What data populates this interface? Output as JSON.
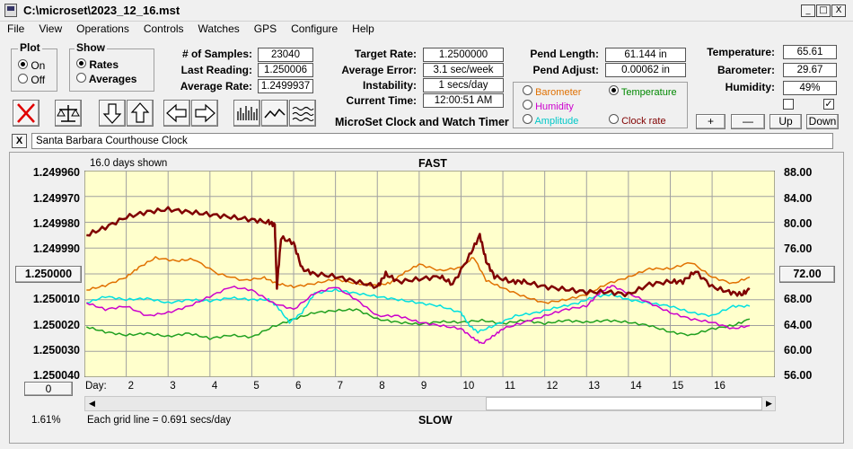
{
  "window": {
    "title": "C:\\microset\\2023_12_16.mst",
    "btn_min": "_",
    "btn_max": "□",
    "btn_close": "X"
  },
  "menu": [
    "File",
    "View",
    "Operations",
    "Controls",
    "Watches",
    "GPS",
    "Configure",
    "Help"
  ],
  "plot": {
    "title": "Plot",
    "on": "On",
    "off": "Off",
    "selected": "On"
  },
  "show": {
    "title": "Show",
    "rates": "Rates",
    "averages": "Averages",
    "selected": "Rates"
  },
  "stats": {
    "samples_label": "# of Samples:",
    "samples": "23040",
    "last_label": "Last Reading:",
    "last": "1.250006",
    "avg_rate_label": "Average Rate:",
    "avg_rate": "1.2499937",
    "target_label": "Target Rate:",
    "target": "1.2500000",
    "avg_err_label": "Average Error:",
    "avg_err": "3.1 sec/week",
    "instab_label": "Instability:",
    "instab": "1 secs/day",
    "time_label": "Current Time:",
    "time": "12:00:51 AM",
    "pend_len_label": "Pend Length:",
    "pend_len": "61.144 in",
    "pend_adj_label": "Pend Adjust:",
    "pend_adj": "0.00062 in",
    "temp_label": "Temperature:",
    "temp": "65.61",
    "baro_label": "Barometer:",
    "baro": "29.67",
    "hum_label": "Humidity:",
    "hum": "49%"
  },
  "subtitle": "MicroSet Clock and Watch Timer",
  "sensor_select": {
    "items": [
      {
        "label": "Barometer",
        "color": "#e07000"
      },
      {
        "label": "Temperature",
        "color": "#008800"
      },
      {
        "label": "Humidity",
        "color": "#cc00cc"
      },
      {
        "label": "Amplitude",
        "color": "#00c8c8"
      },
      {
        "label": "Clock rate",
        "color": "#800000"
      }
    ],
    "selected": "Temperature"
  },
  "scale_buttons": {
    "plus": "+",
    "minus": "—",
    "up": "Up",
    "down": "Down"
  },
  "humidity_check": true,
  "clock_name": "Santa Barbara Courthouse Clock",
  "close_x": "X",
  "chart": {
    "days_shown": "16.0 days shown",
    "fast": "FAST",
    "slow": "SLOW",
    "day_label": "Day:",
    "gridline_note": "Each grid line = 0.691 secs/day",
    "percent": "1.61%",
    "left_btn": "1.250000",
    "right_btn": "72.00",
    "zero_btn": "0",
    "bg": "#ffffcc"
  },
  "chart_data": {
    "type": "line",
    "title": "",
    "x_label": "Day",
    "x_ticks": [
      "2",
      "3",
      "4",
      "5",
      "6",
      "7",
      "8",
      "9",
      "10",
      "11",
      "12",
      "13",
      "14",
      "15",
      "16"
    ],
    "x_range": [
      1,
      17.5
    ],
    "y_left_ticks": [
      "1.249960",
      "1.249970",
      "1.249980",
      "1.249990",
      "1.250000",
      "1.250010",
      "1.250020",
      "1.250030",
      "1.250040"
    ],
    "y_left_range": [
      1.24996,
      1.25004
    ],
    "y_left_inverted": true,
    "y_right_ticks": [
      "88.00",
      "84.00",
      "80.00",
      "76.00",
      "72.00",
      "68.00",
      "64.00",
      "60.00",
      "56.00"
    ],
    "y_right_range": [
      56,
      88
    ],
    "grid": true,
    "series": [
      {
        "name": "Clock rate",
        "color": "#800000",
        "width": 2.5,
        "axis": "left",
        "x": [
          1.05,
          1.5,
          2.0,
          2.5,
          3.0,
          3.5,
          4.0,
          4.5,
          5.0,
          5.4,
          5.55,
          5.6,
          5.7,
          6.0,
          6.2,
          6.5,
          7.0,
          7.5,
          8.0,
          8.2,
          8.5,
          9.0,
          9.5,
          9.8,
          10.2,
          10.45,
          10.6,
          10.8,
          11.2,
          11.5,
          12.0,
          12.5,
          13.0,
          13.5,
          14.0,
          14.5,
          15.0,
          15.3,
          15.6,
          16.0,
          16.4,
          16.7,
          16.9
        ],
        "y": [
          1.249985,
          1.249982,
          1.249978,
          1.249976,
          1.249975,
          1.249976,
          1.249977,
          1.249978,
          1.249979,
          1.24998,
          1.249981,
          1.250005,
          1.249986,
          1.249988,
          1.249998,
          1.25,
          1.250001,
          1.250003,
          1.250005,
          1.25,
          1.250003,
          1.250002,
          1.250001,
          1.250004,
          1.249993,
          1.249985,
          1.249995,
          1.250001,
          1.250003,
          1.250003,
          1.250005,
          1.250006,
          1.250007,
          1.250007,
          1.250008,
          1.250004,
          1.250003,
          1.250003,
          1.249999,
          1.250005,
          1.250007,
          1.250008,
          1.250006
        ]
      },
      {
        "name": "Barometer",
        "color": "#e07000",
        "width": 1.5,
        "axis": "right",
        "x": [
          1.05,
          1.5,
          2.0,
          2.3,
          2.7,
          3.2,
          3.6,
          4.2,
          4.8,
          5.3,
          5.6,
          6.0,
          6.5,
          7.0,
          7.5,
          8.0,
          8.3,
          8.6,
          9.0,
          9.5,
          10.0,
          10.3,
          10.6,
          11.0,
          11.5,
          12.0,
          12.5,
          13.0,
          13.5,
          14.0,
          14.5,
          15.0,
          15.5,
          16.0,
          16.5,
          16.9
        ],
        "y": [
          69.5,
          70.2,
          71.5,
          73.0,
          74.5,
          74.0,
          74.3,
          72.0,
          71.0,
          71.4,
          70.5,
          70.0,
          70.5,
          71.2,
          70.5,
          70.2,
          70.6,
          72.0,
          73.5,
          72.5,
          73.0,
          74.6,
          71.0,
          69.8,
          68.5,
          67.5,
          68.0,
          68.8,
          70.5,
          71.5,
          72.8,
          72.8,
          73.8,
          71.5,
          70.5,
          71.5
        ]
      },
      {
        "name": "Humidity",
        "color": "#cc00cc",
        "width": 1.5,
        "axis": "right",
        "x": [
          1.05,
          1.5,
          2.0,
          2.5,
          3.0,
          3.5,
          4.0,
          4.5,
          5.0,
          5.5,
          6.0,
          6.5,
          7.0,
          7.5,
          8.0,
          8.5,
          9.0,
          9.5,
          10.0,
          10.3,
          10.5,
          10.8,
          11.0,
          11.5,
          12.0,
          12.5,
          13.0,
          13.3,
          13.6,
          14.0,
          14.5,
          15.0,
          15.5,
          16.0,
          16.5,
          16.9
        ],
        "y": [
          67.5,
          66.5,
          67.0,
          65.5,
          66.0,
          67.0,
          68.5,
          70.0,
          69.5,
          67.5,
          66.5,
          69.0,
          70.0,
          68.0,
          65.5,
          65.5,
          64.5,
          64.0,
          63.5,
          62.0,
          61.2,
          62.5,
          63.5,
          64.5,
          65.5,
          66.5,
          67.0,
          69.0,
          70.2,
          69.0,
          67.5,
          66.0,
          65.0,
          64.5,
          63.5,
          64.0
        ]
      },
      {
        "name": "Amplitude",
        "color": "#00e0e0",
        "width": 1.5,
        "axis": "right",
        "x": [
          1.05,
          1.5,
          2.0,
          2.5,
          3.0,
          3.5,
          4.0,
          4.5,
          5.0,
          5.4,
          5.6,
          5.9,
          6.2,
          6.5,
          7.0,
          7.5,
          8.0,
          8.5,
          9.0,
          9.5,
          10.0,
          10.2,
          10.4,
          10.8,
          11.3,
          11.8,
          12.3,
          12.8,
          13.2,
          13.6,
          14.0,
          14.5,
          15.0,
          15.5,
          16.0,
          16.5,
          16.9
        ],
        "y": [
          67.5,
          68.5,
          68.0,
          68.2,
          67.5,
          68.0,
          67.8,
          68.3,
          68.0,
          68.0,
          67.0,
          64.5,
          66.0,
          69.0,
          69.5,
          69.0,
          68.5,
          68.0,
          67.5,
          67.0,
          66.0,
          64.0,
          63.0,
          64.0,
          65.5,
          66.0,
          66.8,
          67.5,
          68.5,
          68.8,
          68.0,
          67.5,
          67.0,
          66.0,
          65.5,
          67.0,
          67.0
        ]
      },
      {
        "name": "Temperature",
        "color": "#20a020",
        "width": 1.5,
        "axis": "right",
        "x": [
          1.05,
          1.5,
          2.0,
          2.5,
          3.0,
          3.5,
          4.0,
          4.5,
          5.0,
          5.5,
          6.0,
          6.5,
          7.0,
          7.5,
          8.0,
          8.5,
          9.0,
          9.5,
          10.0,
          10.5,
          11.0,
          11.5,
          12.0,
          12.5,
          13.0,
          13.5,
          14.0,
          14.5,
          15.0,
          15.5,
          16.0,
          16.5,
          16.9
        ],
        "y": [
          63.8,
          63.0,
          62.5,
          62.8,
          62.3,
          62.8,
          62.0,
          62.5,
          62.2,
          63.8,
          65.0,
          66.0,
          66.3,
          66.5,
          65.0,
          64.5,
          64.2,
          64.6,
          64.5,
          64.8,
          64.3,
          64.8,
          64.3,
          64.8,
          64.5,
          64.8,
          64.5,
          64.0,
          63.0,
          62.5,
          63.5,
          64.0,
          65.0
        ]
      }
    ]
  }
}
